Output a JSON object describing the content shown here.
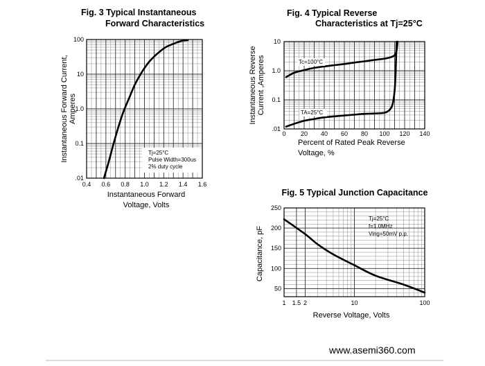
{
  "footer": {
    "url": "www.asemi360.com"
  },
  "chart_data": [
    {
      "type": "line",
      "title": [
        "Fig. 3  Typical Instantaneous",
        "Forward Characteristics"
      ],
      "xlabel": [
        "Instantaneous Forward",
        "Voltage, Volts"
      ],
      "ylabel": [
        "Instantaneous Forward Current,",
        "Amperes"
      ],
      "xscale": "linear",
      "yscale": "log",
      "xlim": [
        0.4,
        1.6
      ],
      "ylim": [
        0.01,
        100
      ],
      "xticks": [
        0.4,
        0.6,
        0.8,
        1.0,
        1.2,
        1.4,
        1.6
      ],
      "xtick_labels": [
        "0.4",
        "0.6",
        "0.8",
        "1.0",
        "1.2",
        "1.4",
        "1.6"
      ],
      "yticks": [
        0.01,
        0.1,
        1,
        10,
        100
      ],
      "ytick_labels": [
        ".01",
        "0.1",
        "1.0",
        "10",
        "100"
      ],
      "grid": true,
      "annotation": [
        "Tj=25°C",
        "Pulse Width=300us",
        "2% duty cycle"
      ],
      "series": [
        {
          "x": [
            0.58,
            0.63,
            0.68,
            0.73,
            0.78,
            0.84,
            0.9,
            0.96,
            1.0,
            1.05,
            1.1,
            1.16,
            1.22,
            1.3,
            1.38,
            1.45
          ],
          "y": [
            0.01,
            0.03,
            0.1,
            0.3,
            0.8,
            2,
            5,
            10,
            15,
            23,
            32,
            45,
            60,
            75,
            90,
            95
          ]
        }
      ]
    },
    {
      "type": "line",
      "title": [
        "Fig. 4  Typical Reverse",
        "Characteristics at  Tj=25°C"
      ],
      "xlabel": [
        "Percent of Rated Peak Reverse",
        "Voltage, %"
      ],
      "ylabel": [
        "Instantaneous Reverse",
        "Current ,Amperes"
      ],
      "xscale": "linear",
      "yscale": "log",
      "xlim": [
        0,
        140
      ],
      "ylim": [
        0.01,
        10
      ],
      "xticks": [
        0,
        20,
        40,
        60,
        80,
        100,
        120,
        140
      ],
      "xtick_labels": [
        "0",
        "20",
        "40",
        "60",
        "80",
        "100",
        "120",
        "140"
      ],
      "yticks": [
        0.01,
        0.1,
        1,
        10
      ],
      "ytick_labels": [
        ".01",
        "0.1",
        "1.0",
        "10"
      ],
      "grid": true,
      "series": [
        {
          "name": "Tc=100°C",
          "x": [
            2,
            10,
            20,
            30,
            40,
            50,
            60,
            70,
            80,
            90,
            100,
            106,
            110,
            112,
            113
          ],
          "y": [
            0.6,
            0.85,
            1.05,
            1.25,
            1.4,
            1.55,
            1.7,
            1.9,
            2.1,
            2.35,
            2.6,
            2.9,
            3.4,
            5,
            10
          ]
        },
        {
          "name": "TA=25°C",
          "x": [
            2,
            10,
            20,
            30,
            40,
            50,
            60,
            70,
            80,
            90,
            100,
            105,
            108,
            110,
            111,
            112
          ],
          "y": [
            0.012,
            0.015,
            0.019,
            0.022,
            0.025,
            0.027,
            0.029,
            0.031,
            0.033,
            0.034,
            0.036,
            0.045,
            0.07,
            0.2,
            0.8,
            10
          ]
        }
      ]
    },
    {
      "type": "line",
      "title": [
        "Fig. 5  Typical Junction Capacitance"
      ],
      "xlabel": [
        "Reverse Voltage, Volts"
      ],
      "ylabel": [
        "Capacitance, pF"
      ],
      "xscale": "log",
      "yscale": "linear",
      "xlim": [
        1,
        100
      ],
      "ylim": [
        30,
        250
      ],
      "xticks": [
        1,
        1.5,
        2,
        10,
        100
      ],
      "xtick_labels": [
        "1",
        "1.5",
        "2",
        "10",
        "100"
      ],
      "yticks": [
        50,
        100,
        150,
        200,
        250
      ],
      "ytick_labels": [
        "50",
        "100",
        "150",
        "200",
        "250"
      ],
      "grid": true,
      "annotation": [
        "Tj=25°C",
        "f=1.0MHz",
        "Ving=50mV p.p."
      ],
      "series": [
        {
          "x": [
            1,
            2,
            3,
            5,
            10,
            20,
            50,
            100
          ],
          "y": [
            222,
            185,
            160,
            135,
            108,
            82,
            60,
            40
          ]
        }
      ]
    }
  ]
}
